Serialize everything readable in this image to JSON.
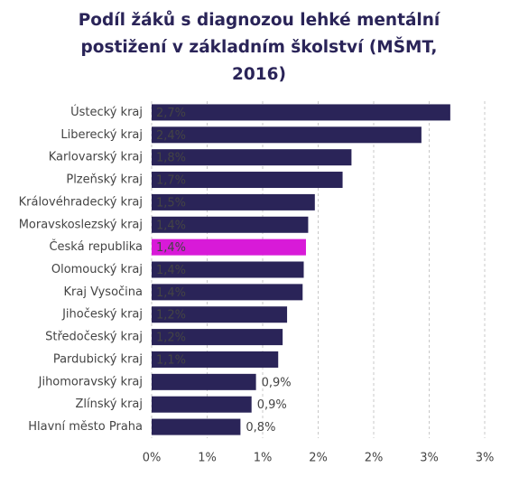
{
  "chart_data": {
    "type": "bar",
    "orientation": "horizontal",
    "title": "Podíl žáků s diagnozou lehké mentální postižení v základním školství (MŠMT, 2016)",
    "categories": [
      "Ústecký kraj",
      "Liberecký kraj",
      "Karlovarský kraj",
      "Plzeňský kraj",
      "Královéhradecký kraj",
      "Moravskoslezský kraj",
      "Česká republika",
      "Olomoucký kraj",
      "Kraj Vysočina",
      "Jihočeský kraj",
      "Středočeský kraj",
      "Pardubický kraj",
      "Jihomoravský kraj",
      "Zlínský kraj",
      "Hlavní město Praha"
    ],
    "values": [
      2.69,
      2.43,
      1.8,
      1.72,
      1.47,
      1.41,
      1.39,
      1.37,
      1.36,
      1.22,
      1.18,
      1.14,
      0.94,
      0.9,
      0.8
    ],
    "value_labels": [
      "2,7%",
      "2,4%",
      "1,8%",
      "1,7%",
      "1,5%",
      "1,4%",
      "1,4%",
      "1,4%",
      "1,4%",
      "1,2%",
      "1,2%",
      "1,1%",
      "0,9%",
      "0,9%",
      "0,8%"
    ],
    "colors": [
      "#2a2458",
      "#2a2458",
      "#2a2458",
      "#2a2458",
      "#2a2458",
      "#2a2458",
      "#d81ad8",
      "#2a2458",
      "#2a2458",
      "#2a2458",
      "#2a2458",
      "#2a2458",
      "#2a2458",
      "#2a2458",
      "#2a2458"
    ],
    "xlim": [
      0,
      3
    ],
    "xticks": [
      {
        "value": 0,
        "label": "0%"
      },
      {
        "value": 0.5,
        "label": "1%"
      },
      {
        "value": 1,
        "label": "1%"
      },
      {
        "value": 1.5,
        "label": "2%"
      },
      {
        "value": 2,
        "label": "2%"
      },
      {
        "value": 2.5,
        "label": "3%"
      },
      {
        "value": 3,
        "label": "3%"
      }
    ],
    "grid": true
  }
}
